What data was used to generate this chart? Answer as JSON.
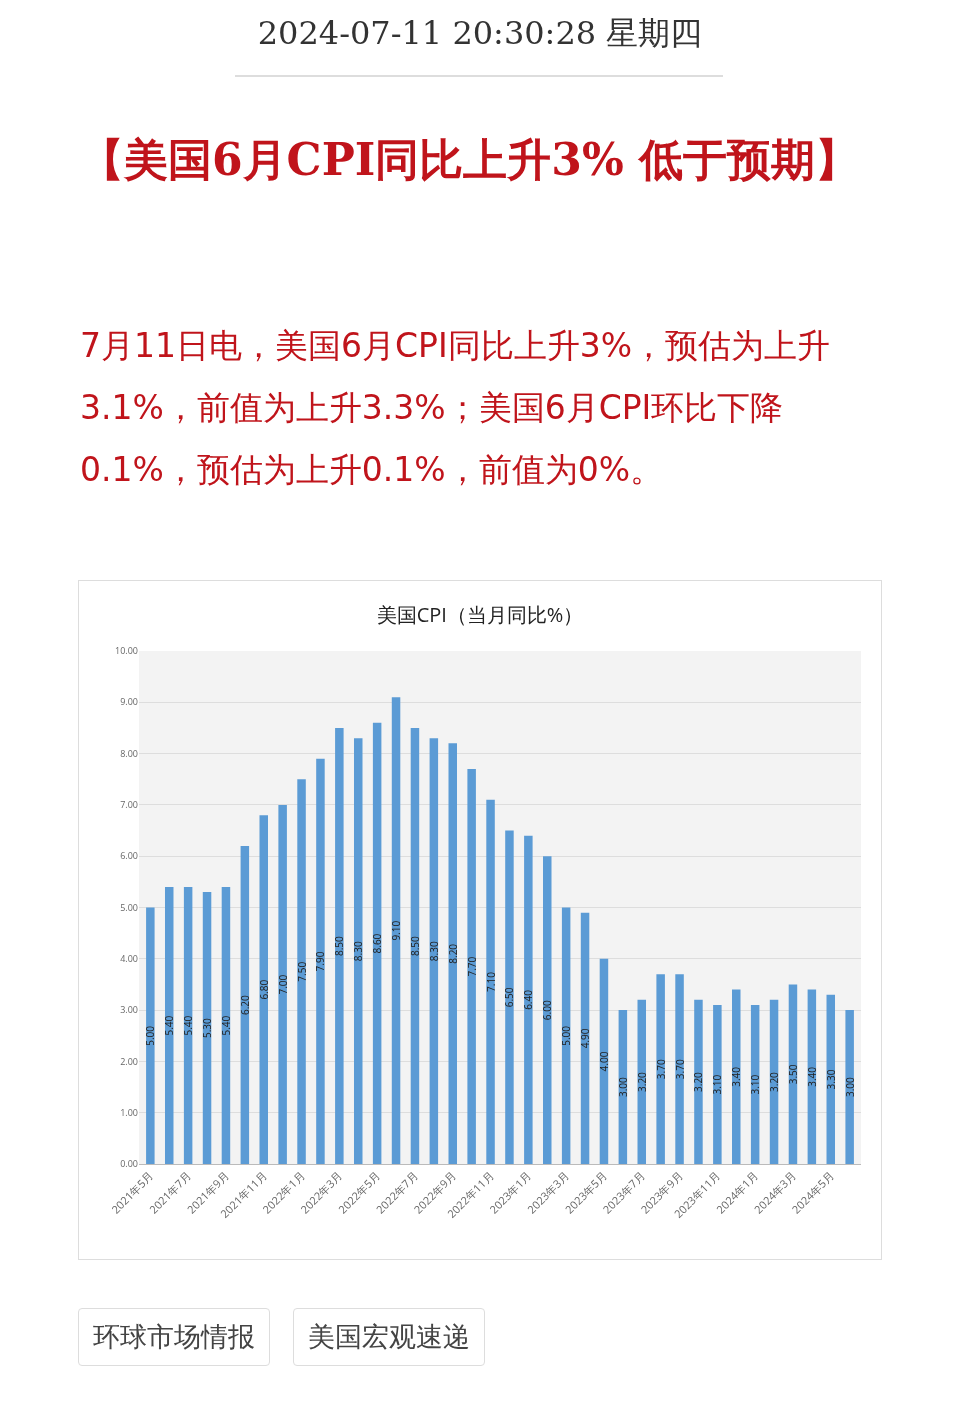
{
  "chart_data": {
    "type": "bar",
    "title": "美国CPI（当月同比%）",
    "annotations": [
      "2024-07-11 20:30:28 星期四",
      "【美国6月CPI同比上升3% 低于预期】",
      "7月11日电，美国6月CPI同比上升3%，预估为上升3.1%，前值为上升3.3%；美国6月CPI环比下降0.1%，预估为上升0.1%，前值为0%。",
      "环球市场情报",
      "美国宏观速递"
    ],
    "categories": [
      "2021年5月",
      null,
      "2021年7月",
      null,
      "2021年9月",
      null,
      "2021年11月",
      null,
      "2022年1月",
      null,
      "2022年3月",
      null,
      "2022年5月",
      null,
      "2022年7月",
      null,
      "2022年9月",
      null,
      "2022年11月",
      null,
      "2023年1月",
      null,
      "2023年3月",
      null,
      "2023年5月",
      null,
      "2023年7月",
      null,
      "2023年9月",
      null,
      "2023年11月",
      null,
      "2024年1月",
      null,
      "2024年3月",
      null,
      "2024年5月",
      null
    ],
    "values": [
      5.0,
      5.4,
      5.4,
      5.3,
      5.4,
      6.2,
      6.8,
      7.0,
      7.5,
      7.9,
      8.5,
      8.3,
      8.6,
      9.1,
      8.5,
      8.3,
      8.2,
      7.7,
      7.1,
      6.5,
      6.4,
      6.0,
      5.0,
      4.9,
      4.0,
      3.0,
      3.2,
      3.7,
      3.7,
      3.2,
      3.1,
      3.4,
      3.1,
      3.2,
      3.5,
      3.4,
      3.3,
      3.0
    ],
    "value_labels": [
      "5.00",
      "5.40",
      "5.40",
      "5.30",
      "5.40",
      "6.20",
      "6.80",
      "7.00",
      "7.50",
      "7.90",
      "8.50",
      "8.30",
      "8.60",
      "9.10",
      "8.50",
      "8.30",
      "8.20",
      "7.70",
      "7.10",
      "6.50",
      "6.40",
      "6.00",
      "5.00",
      "4.90",
      "4.00",
      "3.00",
      "3.20",
      "3.70",
      "3.70",
      "3.20",
      "3.10",
      "3.40",
      "3.10",
      "3.20",
      "3.50",
      "3.40",
      "3.30",
      "3.00"
    ],
    "color": "#5b9bd5",
    "ylim": [
      0,
      10
    ],
    "yticks": [
      {
        "value": 0,
        "label": "0.00"
      },
      {
        "value": 1,
        "label": "1.00"
      },
      {
        "value": 2,
        "label": "2.00"
      },
      {
        "value": 3,
        "label": "3.00"
      },
      {
        "value": 4,
        "label": "4.00"
      },
      {
        "value": 5,
        "label": "5.00"
      },
      {
        "value": 6,
        "label": "6.00"
      },
      {
        "value": 7,
        "label": "7.00"
      },
      {
        "value": 8,
        "label": "8.00"
      },
      {
        "value": 9,
        "label": "9.00"
      },
      {
        "value": 10,
        "label": "10.00"
      }
    ],
    "grid": "y"
  }
}
